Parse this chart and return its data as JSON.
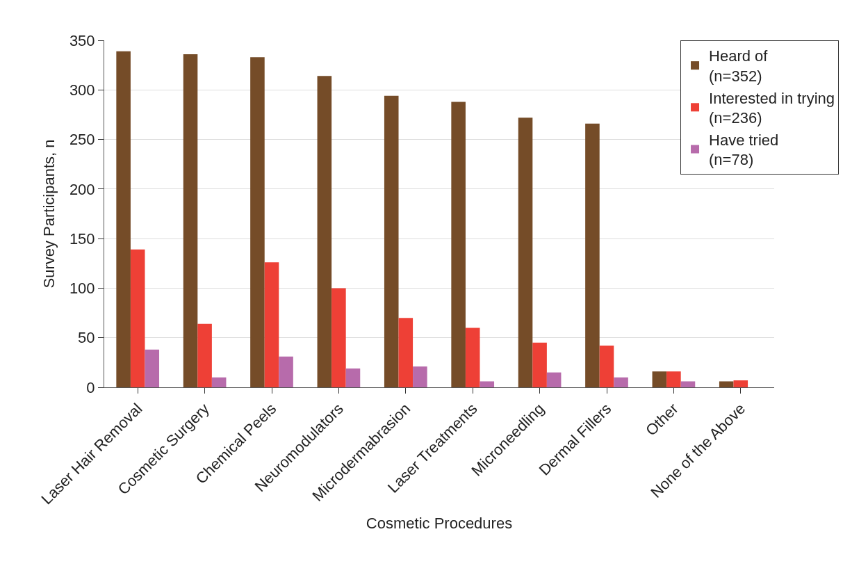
{
  "chart_data": {
    "type": "bar",
    "xlabel": "Cosmetic Procedures",
    "ylabel": "Survey Participants, n",
    "categories": [
      "Laser Hair Removal",
      "Cosmetic Surgery",
      "Chemical Peels",
      "Neuromodulators",
      "Microdermabrasion",
      "Laser Treatments",
      "Microneedling",
      "Dermal Fillers",
      "Other",
      "None of the Above"
    ],
    "series": [
      {
        "name": "Heard of\n(n=352)",
        "color": "#754c28",
        "values": [
          339,
          336,
          333,
          314,
          294,
          288,
          272,
          266,
          16,
          6
        ]
      },
      {
        "name": "Interested in trying\n(n=236)",
        "color": "#ee4036",
        "values": [
          139,
          64,
          126,
          100,
          70,
          60,
          45,
          42,
          16,
          7
        ]
      },
      {
        "name": "Have tried\n(n=78)",
        "color": "#b76bab",
        "values": [
          38,
          10,
          31,
          19,
          21,
          6,
          15,
          10,
          6,
          0
        ]
      }
    ],
    "ylim": [
      0,
      350
    ],
    "yticks": [
      0,
      50,
      100,
      150,
      200,
      250,
      300,
      350
    ],
    "grid": "y",
    "legend": "top right"
  }
}
